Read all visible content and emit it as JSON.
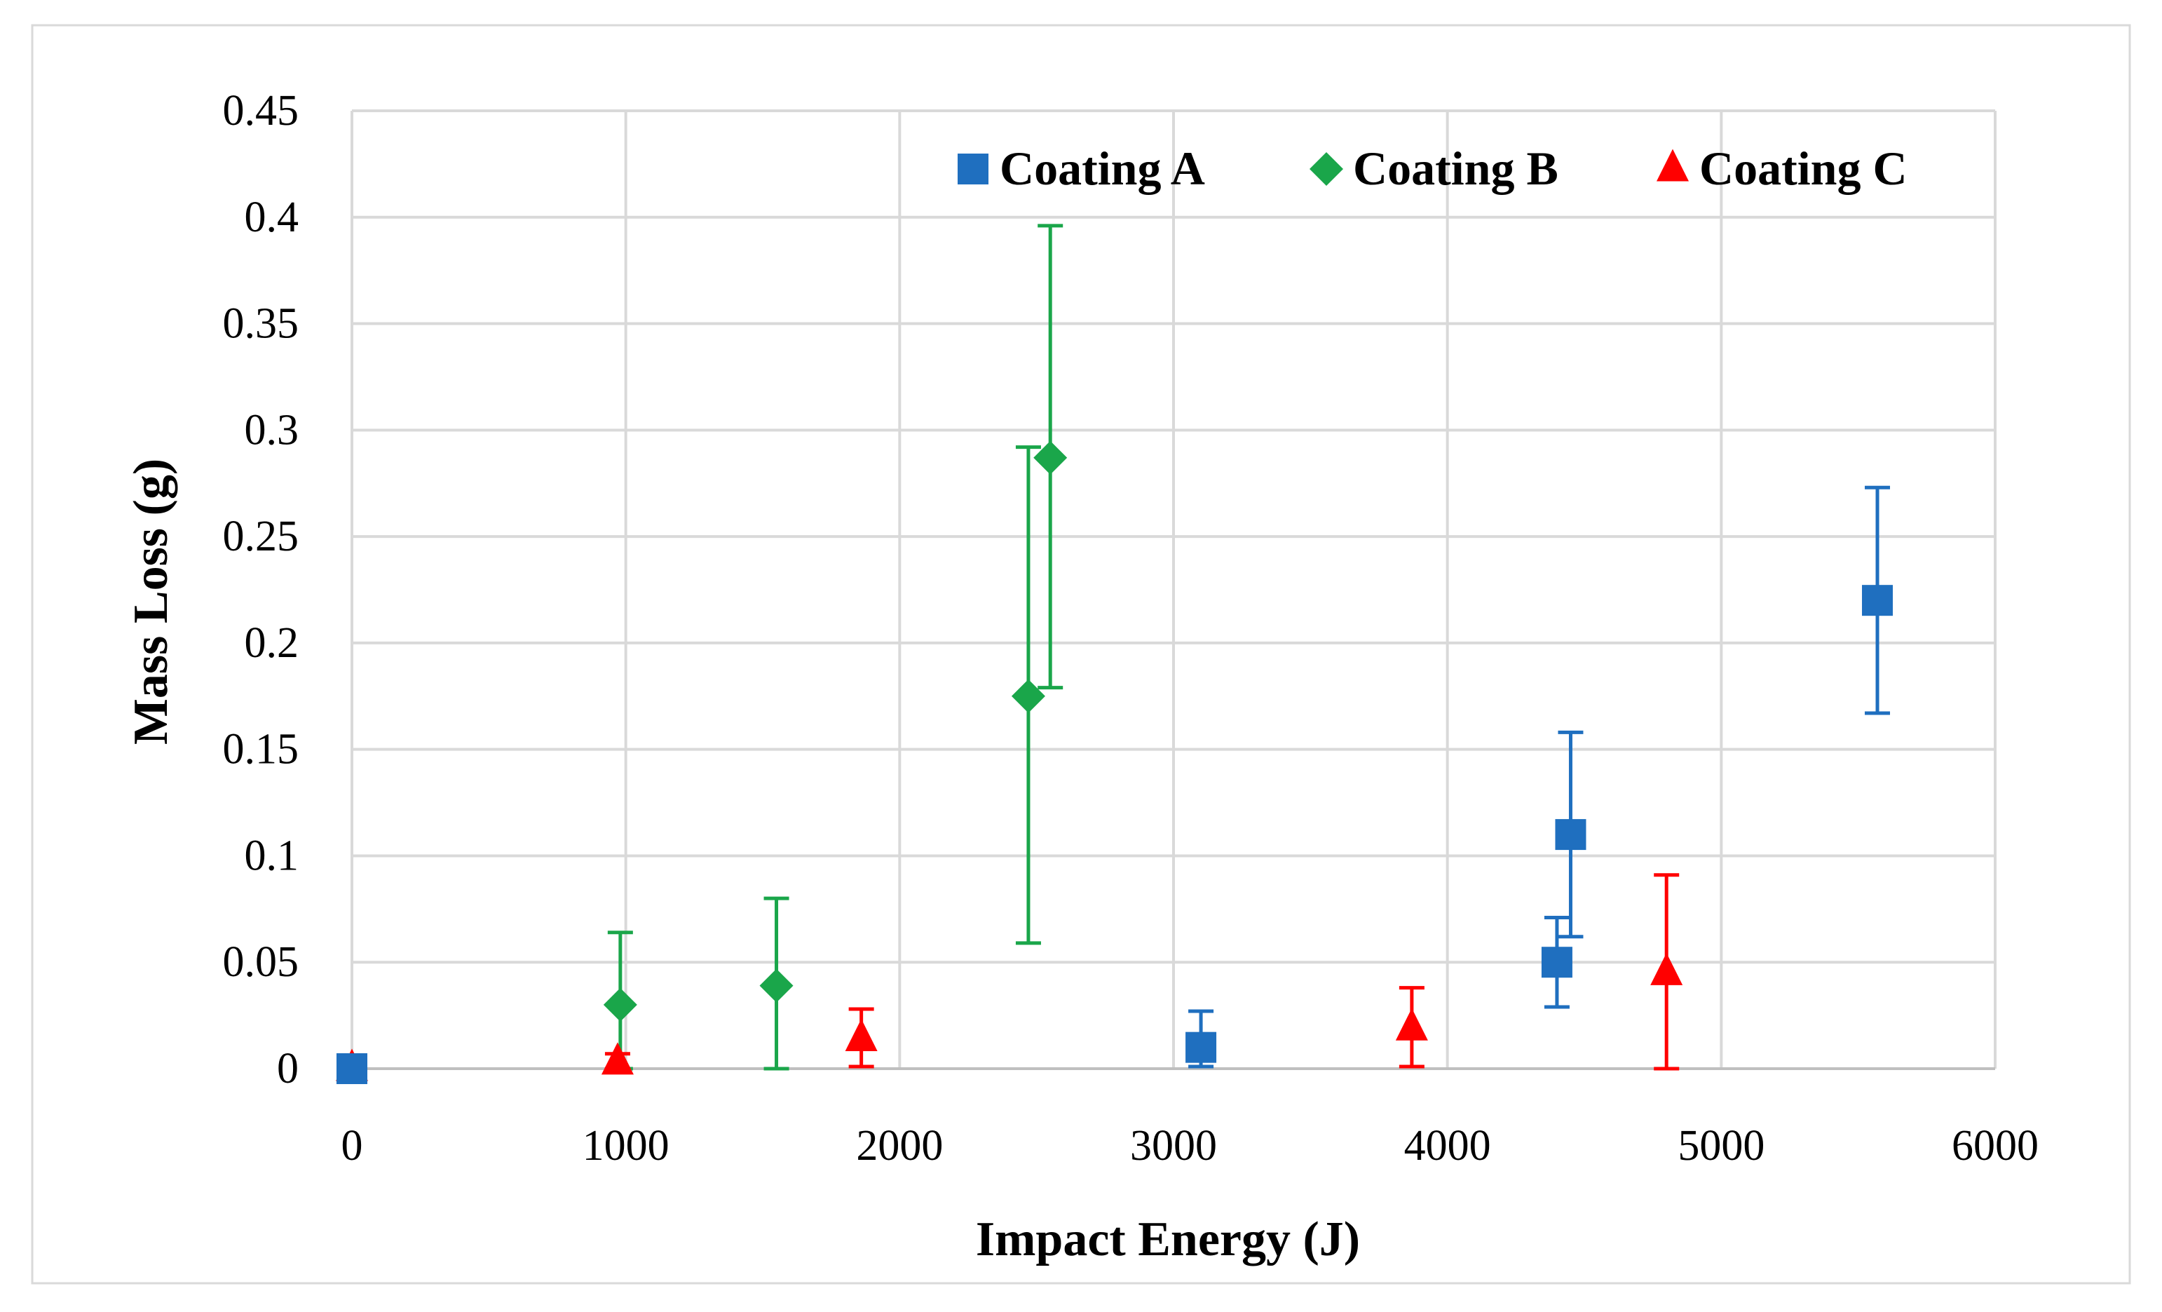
{
  "chart_data": {
    "type": "scatter",
    "title": "",
    "xlabel": "Impact Energy (J)",
    "ylabel": "Mass Loss (g)",
    "xlim": [
      0,
      6000
    ],
    "ylim": [
      0,
      0.45
    ],
    "grid": true,
    "legend_position": "top-right",
    "x_ticks": [
      0,
      1000,
      2000,
      3000,
      4000,
      5000,
      6000
    ],
    "y_ticks": [
      0,
      0.05,
      0.1,
      0.15,
      0.2,
      0.25,
      0.3,
      0.35,
      0.4,
      0.45
    ],
    "x_tick_labels": [
      "0",
      "1000",
      "2000",
      "3000",
      "4000",
      "5000",
      "6000"
    ],
    "y_tick_labels": [
      "0",
      "0.05",
      "0.1",
      "0.15",
      "0.2",
      "0.25",
      "0.3",
      "0.35",
      "0.4",
      "0.45"
    ],
    "series": [
      {
        "name": "Coating A",
        "marker": "square",
        "color": "#1f6fbf",
        "points": [
          {
            "x": 0,
            "y": 0,
            "err_low": 0,
            "err_high": 0
          },
          {
            "x": 3100,
            "y": 0.01,
            "err_low": 0.009,
            "err_high": 0.017
          },
          {
            "x": 4400,
            "y": 0.05,
            "err_low": 0.021,
            "err_high": 0.021
          },
          {
            "x": 4450,
            "y": 0.11,
            "err_low": 0.048,
            "err_high": 0.048
          },
          {
            "x": 5570,
            "y": 0.22,
            "err_low": 0.053,
            "err_high": 0.053
          }
        ]
      },
      {
        "name": "Coating B",
        "marker": "diamond",
        "color": "#1aa64a",
        "points": [
          {
            "x": 980,
            "y": 0.03,
            "err_low": 0.03,
            "err_high": 0.034
          },
          {
            "x": 1550,
            "y": 0.039,
            "err_low": 0.039,
            "err_high": 0.041
          },
          {
            "x": 2470,
            "y": 0.175,
            "err_low": 0.116,
            "err_high": 0.117
          },
          {
            "x": 2550,
            "y": 0.287,
            "err_low": 0.108,
            "err_high": 0.109
          }
        ]
      },
      {
        "name": "Coating C",
        "marker": "triangle",
        "color": "#ff0000",
        "points": [
          {
            "x": 0,
            "y": 0,
            "err_low": 0,
            "err_high": 0
          },
          {
            "x": 970,
            "y": 0.003,
            "err_low": 0.003,
            "err_high": 0.004
          },
          {
            "x": 1860,
            "y": 0.014,
            "err_low": 0.013,
            "err_high": 0.014
          },
          {
            "x": 3870,
            "y": 0.019,
            "err_low": 0.018,
            "err_high": 0.019
          },
          {
            "x": 4800,
            "y": 0.045,
            "err_low": 0.045,
            "err_high": 0.046
          }
        ]
      }
    ]
  }
}
